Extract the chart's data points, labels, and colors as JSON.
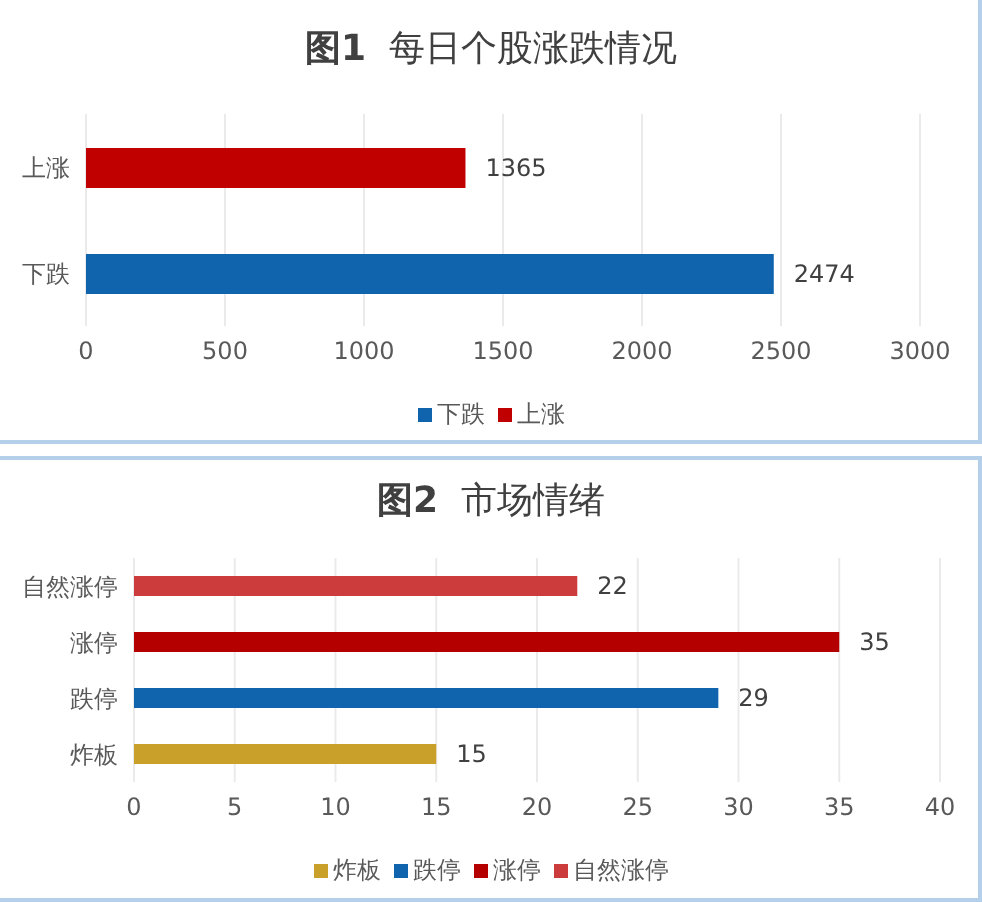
{
  "chart_data": [
    {
      "type": "bar",
      "orientation": "horizontal",
      "stacked": true,
      "title": "图1 每日个股涨跌情况",
      "categories": [
        "上涨",
        "下跌"
      ],
      "series": [
        {
          "name": "下跌",
          "color": "#0f64ad",
          "values": [
            null,
            2474
          ]
        },
        {
          "name": "上涨",
          "color": "#c00000",
          "values": [
            1365,
            null
          ]
        }
      ],
      "xlim": [
        0,
        3000
      ],
      "xticks": [
        0,
        500,
        1000,
        1500,
        2000,
        2500,
        3000
      ],
      "grid": "x",
      "legend": "bottom",
      "data_labels": true
    },
    {
      "type": "bar",
      "orientation": "horizontal",
      "stacked": true,
      "title": "图2 市场情绪",
      "categories": [
        "自然涨停",
        "涨停",
        "跌停",
        "炸板"
      ],
      "series": [
        {
          "name": "炸板",
          "color": "#c9a02a",
          "values": [
            null,
            null,
            null,
            15
          ]
        },
        {
          "name": "跌停",
          "color": "#0f64ad",
          "values": [
            null,
            null,
            29,
            null
          ]
        },
        {
          "name": "涨停",
          "color": "#b50000",
          "values": [
            null,
            35,
            null,
            null
          ]
        },
        {
          "name": "自然涨停",
          "color": "#cc3c3c",
          "values": [
            22,
            null,
            null,
            null
          ]
        }
      ],
      "xlim": [
        0,
        40
      ],
      "xticks": [
        0,
        5,
        10,
        15,
        20,
        25,
        30,
        35,
        40
      ],
      "grid": "x",
      "legend": "bottom",
      "data_labels": true
    }
  ]
}
